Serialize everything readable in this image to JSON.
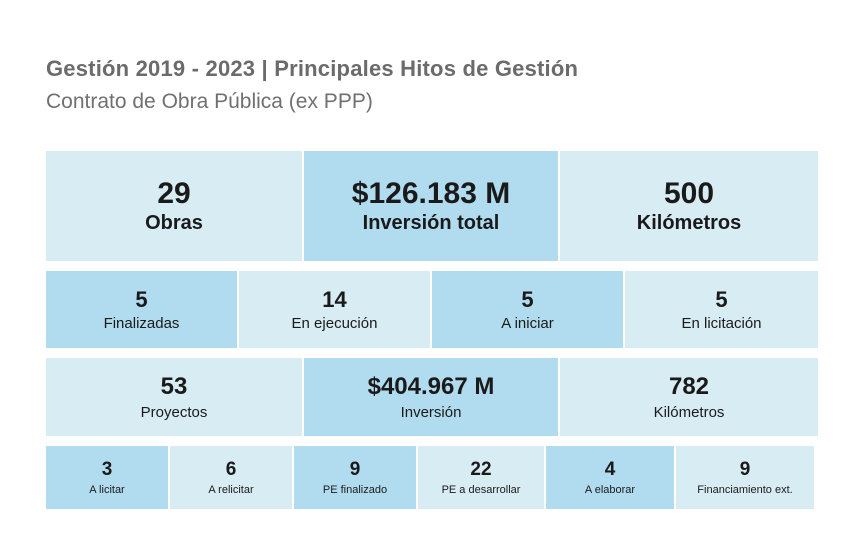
{
  "header": {
    "title": "Gestión 2019 - 2023 | Principales Hitos de Gestión",
    "subtitle": "Contrato de Obra Pública (ex PPP)"
  },
  "row1": [
    {
      "value": "29",
      "label": "Obras"
    },
    {
      "value": "$126.183 M",
      "label": "Inversión total"
    },
    {
      "value": "500",
      "label": "Kilómetros"
    }
  ],
  "row2": [
    {
      "value": "5",
      "label": "Finalizadas"
    },
    {
      "value": "14",
      "label": "En ejecución"
    },
    {
      "value": "5",
      "label": "A iniciar"
    },
    {
      "value": "5",
      "label": "En licitación"
    }
  ],
  "row3": [
    {
      "value": "53",
      "label": "Proyectos"
    },
    {
      "value": "$404.967 M",
      "label": "Inversión"
    },
    {
      "value": "782",
      "label": "Kilómetros"
    }
  ],
  "row4": [
    {
      "value": "3",
      "label": "A licitar"
    },
    {
      "value": "6",
      "label": "A relicitar"
    },
    {
      "value": "9",
      "label": "PE finalizado"
    },
    {
      "value": "22",
      "label": "PE a desarrollar"
    },
    {
      "value": "4",
      "label": "A elaborar"
    },
    {
      "value": "9",
      "label": "Financiamiento ext."
    }
  ],
  "colors": {
    "light_cell": "#d8ecf4",
    "dark_cell": "#b1dcef",
    "title": "#6b6b6b"
  }
}
